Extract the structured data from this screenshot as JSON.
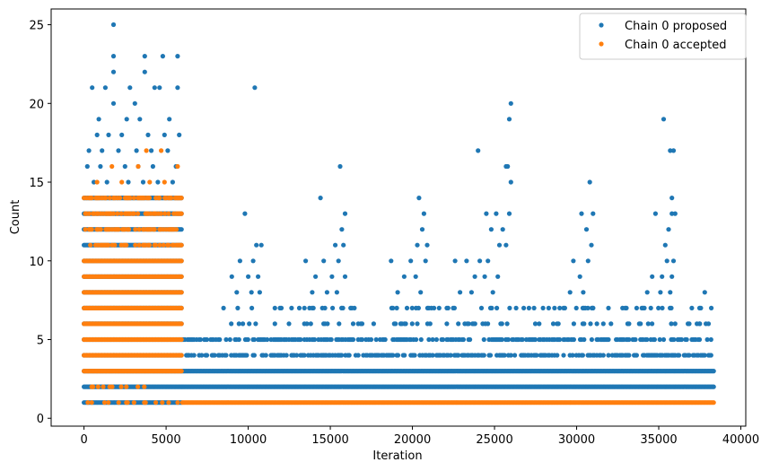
{
  "chart_data": {
    "type": "scatter",
    "title": "",
    "xlabel": "Iteration",
    "ylabel": "Count",
    "xlim": [
      -2000,
      40300
    ],
    "ylim": [
      -0.5,
      26
    ],
    "x_ticks": [
      0,
      5000,
      10000,
      15000,
      20000,
      25000,
      30000,
      35000,
      40000
    ],
    "y_ticks": [
      0,
      5,
      10,
      15,
      20,
      25
    ],
    "grid": false,
    "legend_position": "top-right",
    "series": [
      {
        "name": "Chain 0 proposed",
        "color": "#1f77b4",
        "segments": [
          {
            "x_start": 0,
            "x_end": 6000,
            "y_min": 1,
            "y_max": 14,
            "density": "dense"
          },
          {
            "x_start": 6000,
            "x_end": 38400,
            "y_min": 2,
            "y_max": 3,
            "density": "dense"
          },
          {
            "x_start": 6000,
            "x_end": 38400,
            "y_min": 4,
            "y_max": 5,
            "density": "medium"
          },
          {
            "x_start": 8500,
            "x_end": 38400,
            "y_min": 6,
            "y_max": 7,
            "density": "sparse"
          }
        ],
        "peaks": [
          {
            "x": 1800,
            "y": 25
          },
          {
            "x": 1800,
            "y": 23
          },
          {
            "x": 1800,
            "y": 22
          },
          {
            "x": 3700,
            "y": 23
          },
          {
            "x": 3700,
            "y": 22
          },
          {
            "x": 4800,
            "y": 23
          },
          {
            "x": 5700,
            "y": 23
          },
          {
            "x": 500,
            "y": 21
          },
          {
            "x": 1300,
            "y": 21
          },
          {
            "x": 2800,
            "y": 21
          },
          {
            "x": 4300,
            "y": 21
          },
          {
            "x": 4600,
            "y": 21
          },
          {
            "x": 5700,
            "y": 21
          },
          {
            "x": 1800,
            "y": 20
          },
          {
            "x": 3100,
            "y": 20
          },
          {
            "x": 900,
            "y": 19
          },
          {
            "x": 2600,
            "y": 19
          },
          {
            "x": 3400,
            "y": 19
          },
          {
            "x": 5200,
            "y": 19
          },
          {
            "x": 800,
            "y": 18
          },
          {
            "x": 1500,
            "y": 18
          },
          {
            "x": 2300,
            "y": 18
          },
          {
            "x": 3900,
            "y": 18
          },
          {
            "x": 4900,
            "y": 18
          },
          {
            "x": 5800,
            "y": 18
          },
          {
            "x": 300,
            "y": 17
          },
          {
            "x": 1100,
            "y": 17
          },
          {
            "x": 2100,
            "y": 17
          },
          {
            "x": 3200,
            "y": 17
          },
          {
            "x": 4100,
            "y": 17
          },
          {
            "x": 5100,
            "y": 17
          },
          {
            "x": 200,
            "y": 16
          },
          {
            "x": 1000,
            "y": 16
          },
          {
            "x": 2500,
            "y": 16
          },
          {
            "x": 3300,
            "y": 16
          },
          {
            "x": 4200,
            "y": 16
          },
          {
            "x": 5600,
            "y": 16
          },
          {
            "x": 600,
            "y": 15
          },
          {
            "x": 1400,
            "y": 15
          },
          {
            "x": 2700,
            "y": 15
          },
          {
            "x": 3600,
            "y": 15
          },
          {
            "x": 4500,
            "y": 15
          },
          {
            "x": 5400,
            "y": 15
          },
          {
            "x": 9800,
            "y": 13
          },
          {
            "x": 10400,
            "y": 21
          },
          {
            "x": 10500,
            "y": 11
          },
          {
            "x": 10800,
            "y": 11
          },
          {
            "x": 9500,
            "y": 10
          },
          {
            "x": 10300,
            "y": 10
          },
          {
            "x": 9000,
            "y": 9
          },
          {
            "x": 10000,
            "y": 9
          },
          {
            "x": 10600,
            "y": 9
          },
          {
            "x": 9300,
            "y": 8
          },
          {
            "x": 10200,
            "y": 8
          },
          {
            "x": 10700,
            "y": 8
          },
          {
            "x": 14400,
            "y": 14
          },
          {
            "x": 15600,
            "y": 16
          },
          {
            "x": 15900,
            "y": 13
          },
          {
            "x": 15700,
            "y": 12
          },
          {
            "x": 15300,
            "y": 11
          },
          {
            "x": 15800,
            "y": 11
          },
          {
            "x": 13500,
            "y": 10
          },
          {
            "x": 14600,
            "y": 10
          },
          {
            "x": 15500,
            "y": 10
          },
          {
            "x": 14100,
            "y": 9
          },
          {
            "x": 15100,
            "y": 9
          },
          {
            "x": 15900,
            "y": 9
          },
          {
            "x": 13900,
            "y": 8
          },
          {
            "x": 14800,
            "y": 8
          },
          {
            "x": 15400,
            "y": 8
          },
          {
            "x": 20400,
            "y": 14
          },
          {
            "x": 20700,
            "y": 13
          },
          {
            "x": 20600,
            "y": 12
          },
          {
            "x": 20300,
            "y": 11
          },
          {
            "x": 20900,
            "y": 11
          },
          {
            "x": 18700,
            "y": 10
          },
          {
            "x": 19900,
            "y": 10
          },
          {
            "x": 20800,
            "y": 10
          },
          {
            "x": 19500,
            "y": 9
          },
          {
            "x": 20200,
            "y": 9
          },
          {
            "x": 20500,
            "y": 8
          },
          {
            "x": 19100,
            "y": 8
          },
          {
            "x": 24000,
            "y": 17
          },
          {
            "x": 25700,
            "y": 16
          },
          {
            "x": 25800,
            "y": 16
          },
          {
            "x": 26000,
            "y": 20
          },
          {
            "x": 25900,
            "y": 19
          },
          {
            "x": 26000,
            "y": 15
          },
          {
            "x": 24500,
            "y": 13
          },
          {
            "x": 25100,
            "y": 13
          },
          {
            "x": 25900,
            "y": 13
          },
          {
            "x": 24800,
            "y": 12
          },
          {
            "x": 25500,
            "y": 12
          },
          {
            "x": 25700,
            "y": 11
          },
          {
            "x": 25300,
            "y": 11
          },
          {
            "x": 22600,
            "y": 10
          },
          {
            "x": 23300,
            "y": 10
          },
          {
            "x": 24100,
            "y": 10
          },
          {
            "x": 24600,
            "y": 10
          },
          {
            "x": 23800,
            "y": 9
          },
          {
            "x": 24400,
            "y": 9
          },
          {
            "x": 25200,
            "y": 9
          },
          {
            "x": 22900,
            "y": 8
          },
          {
            "x": 23600,
            "y": 8
          },
          {
            "x": 24900,
            "y": 8
          },
          {
            "x": 30800,
            "y": 15
          },
          {
            "x": 30300,
            "y": 13
          },
          {
            "x": 31000,
            "y": 13
          },
          {
            "x": 30600,
            "y": 12
          },
          {
            "x": 30900,
            "y": 11
          },
          {
            "x": 29800,
            "y": 10
          },
          {
            "x": 30700,
            "y": 10
          },
          {
            "x": 30200,
            "y": 9
          },
          {
            "x": 29600,
            "y": 8
          },
          {
            "x": 30400,
            "y": 8
          },
          {
            "x": 28300,
            "y": 7
          },
          {
            "x": 31000,
            "y": 7
          },
          {
            "x": 35300,
            "y": 19
          },
          {
            "x": 35700,
            "y": 17
          },
          {
            "x": 35900,
            "y": 17
          },
          {
            "x": 35800,
            "y": 14
          },
          {
            "x": 34800,
            "y": 13
          },
          {
            "x": 35800,
            "y": 13
          },
          {
            "x": 36000,
            "y": 13
          },
          {
            "x": 35600,
            "y": 12
          },
          {
            "x": 35400,
            "y": 11
          },
          {
            "x": 35500,
            "y": 10
          },
          {
            "x": 35900,
            "y": 10
          },
          {
            "x": 34600,
            "y": 9
          },
          {
            "x": 35200,
            "y": 9
          },
          {
            "x": 35800,
            "y": 9
          },
          {
            "x": 34300,
            "y": 8
          },
          {
            "x": 35100,
            "y": 8
          },
          {
            "x": 35700,
            "y": 8
          },
          {
            "x": 37800,
            "y": 8
          },
          {
            "x": 38200,
            "y": 7
          },
          {
            "x": 37500,
            "y": 6
          }
        ]
      },
      {
        "name": "Chain 0 accepted",
        "color": "#ff7f0e",
        "segments": [
          {
            "x_start": 0,
            "x_end": 6000,
            "y_min": 3,
            "y_max": 10,
            "density": "dense"
          },
          {
            "x_start": 0,
            "x_end": 6000,
            "y_min": 11,
            "y_max": 14,
            "density": "medium"
          },
          {
            "x_start": 0,
            "x_end": 6000,
            "y_min": 1,
            "y_max": 2,
            "density": "sparse"
          },
          {
            "x_start": 6000,
            "x_end": 38400,
            "y_min": 1,
            "y_max": 1,
            "density": "dense"
          }
        ],
        "peaks": [
          {
            "x": 1700,
            "y": 16
          },
          {
            "x": 3800,
            "y": 17
          },
          {
            "x": 3300,
            "y": 16
          },
          {
            "x": 4700,
            "y": 17
          },
          {
            "x": 4000,
            "y": 15
          },
          {
            "x": 5700,
            "y": 16
          },
          {
            "x": 800,
            "y": 15
          },
          {
            "x": 2300,
            "y": 15
          },
          {
            "x": 4900,
            "y": 15
          }
        ]
      }
    ]
  }
}
